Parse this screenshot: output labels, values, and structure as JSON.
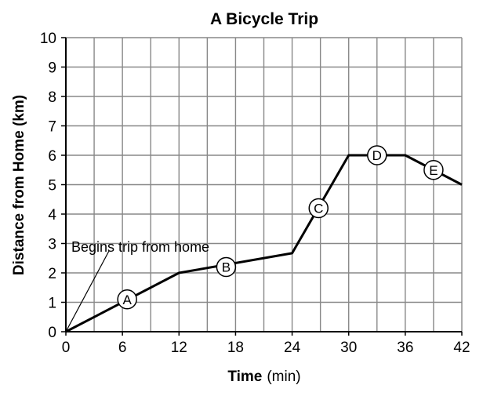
{
  "chart_data": {
    "type": "line",
    "title": "A Bicycle Trip",
    "xlabel_bold": "Time",
    "xlabel_unit": "(min)",
    "ylabel": "Distance from Home (km)",
    "xlim": [
      0,
      42
    ],
    "ylim": [
      0,
      10
    ],
    "x_ticks": [
      0,
      6,
      12,
      18,
      24,
      30,
      36,
      42
    ],
    "y_ticks": [
      0,
      1,
      2,
      3,
      4,
      5,
      6,
      7,
      8,
      9,
      10
    ],
    "grid": true,
    "series": [
      {
        "x": [
          0,
          12,
          24,
          30,
          36,
          42
        ],
        "y": [
          0,
          2,
          2.67,
          6,
          6,
          5
        ]
      }
    ],
    "markers": [
      {
        "label": "A",
        "x": 6.5,
        "y": 1.1
      },
      {
        "label": "B",
        "x": 17,
        "y": 2.2
      },
      {
        "label": "C",
        "x": 26.8,
        "y": 4.2
      },
      {
        "label": "D",
        "x": 33,
        "y": 6
      },
      {
        "label": "E",
        "x": 39,
        "y": 5.5
      }
    ],
    "annotations": [
      {
        "text": "Begins trip from home",
        "x": 0,
        "y": 0
      }
    ]
  }
}
